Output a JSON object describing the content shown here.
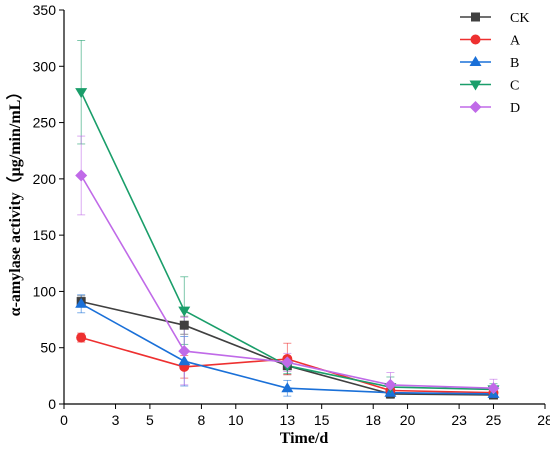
{
  "chart_data": {
    "type": "line",
    "xlabel": "Time/d",
    "ylabel": "α-amylase activity（μg/min/mL）",
    "xlim": [
      0,
      28
    ],
    "ylim": [
      0,
      350
    ],
    "xticks": [
      0,
      3,
      5,
      8,
      10,
      13,
      15,
      18,
      20,
      23,
      25,
      28
    ],
    "yticks": [
      0,
      50,
      100,
      150,
      200,
      250,
      300,
      350
    ],
    "x": [
      1,
      7,
      13,
      19,
      25
    ],
    "legend_position": "top-right",
    "grid": false,
    "series": [
      {
        "name": "CK",
        "color": "#404040",
        "marker": "square",
        "values": [
          91,
          70,
          34,
          9,
          8
        ],
        "errors": [
          5,
          8,
          8,
          4,
          3
        ]
      },
      {
        "name": "A",
        "color": "#ee3030",
        "marker": "circle",
        "values": [
          59,
          33,
          40,
          12,
          10
        ],
        "errors": [
          4,
          10,
          14,
          4,
          3
        ]
      },
      {
        "name": "B",
        "color": "#1a70d8",
        "marker": "triangle-up",
        "values": [
          89,
          38,
          14,
          10,
          9
        ],
        "errors": [
          8,
          22,
          7,
          4,
          3
        ]
      },
      {
        "name": "C",
        "color": "#1a9e6a",
        "marker": "triangle-down",
        "values": [
          277,
          83,
          34,
          15,
          13
        ],
        "errors": [
          46,
          30,
          7,
          9,
          5
        ]
      },
      {
        "name": "D",
        "color": "#c06ae8",
        "marker": "diamond",
        "values": [
          203,
          47,
          37,
          17,
          14
        ],
        "errors": [
          35,
          30,
          8,
          11,
          8
        ]
      }
    ]
  }
}
